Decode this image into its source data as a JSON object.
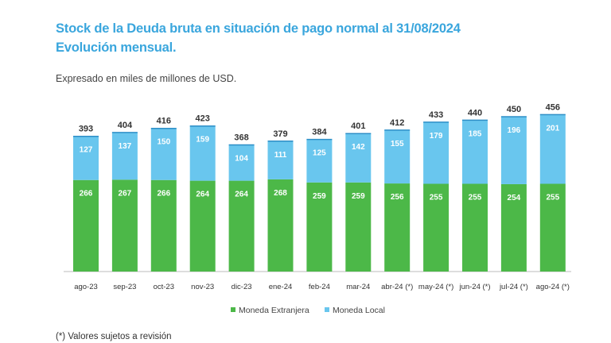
{
  "header": {
    "title_line1": "Stock de la Deuda bruta en situación de pago normal al 31/08/2024",
    "title_line2": "Evolución mensual.",
    "unit_note": "Expresado en miles de millones de USD.",
    "footnote": "(*) Valores sujetos a revisión"
  },
  "colors": {
    "title": "#3aa6dd",
    "moneda_extranjera": "#4cb848",
    "moneda_local": "#69c6ee"
  },
  "chart_data": {
    "type": "bar",
    "stacked": true,
    "categories": [
      "ago-23",
      "sep-23",
      "oct-23",
      "nov-23",
      "dic-23",
      "ene-24",
      "feb-24",
      "mar-24",
      "abr-24 (*)",
      "may-24 (*)",
      "jun-24 (*)",
      "jul-24 (*)",
      "ago-24 (*)"
    ],
    "series": [
      {
        "name": "Moneda Extranjera",
        "values": [
          266,
          267,
          266,
          264,
          264,
          268,
          259,
          259,
          256,
          255,
          255,
          254,
          255
        ]
      },
      {
        "name": "Moneda Local",
        "values": [
          127,
          137,
          150,
          159,
          104,
          111,
          125,
          142,
          155,
          179,
          185,
          196,
          201
        ]
      }
    ],
    "totals": [
      393,
      404,
      416,
      423,
      368,
      379,
      384,
      401,
      412,
      433,
      440,
      450,
      456
    ],
    "ylim": [
      0,
      480
    ],
    "legend_position": "bottom",
    "grid": false
  }
}
